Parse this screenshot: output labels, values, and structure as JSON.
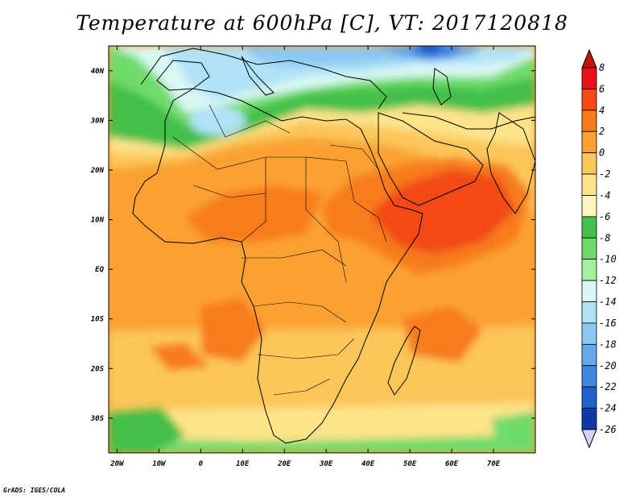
{
  "title": "Temperature at 600hPa [C], VT: 2017120818",
  "credit": "GrADS: IGES/COLA",
  "map": {
    "lon_labels": [
      "20W",
      "10W",
      "0",
      "10E",
      "20E",
      "30E",
      "40E",
      "50E",
      "60E",
      "70E"
    ],
    "lat_labels": [
      "40N",
      "30N",
      "20N",
      "10N",
      "EQ",
      "10S",
      "20S",
      "30S"
    ],
    "lon_values": [
      -20,
      -10,
      0,
      10,
      20,
      30,
      40,
      50,
      60,
      70
    ],
    "lat_values": [
      40,
      30,
      20,
      10,
      0,
      -10,
      -20,
      -30
    ],
    "lon_range": [
      -22,
      80
    ],
    "lat_range": [
      -37,
      45
    ]
  },
  "colorbar": {
    "labels": [
      "8",
      "6",
      "4",
      "2",
      "0",
      "-2",
      "-4",
      "-6",
      "-8",
      "-10",
      "-12",
      "-14",
      "-16",
      "-18",
      "-20",
      "-22",
      "-24",
      "-26"
    ],
    "colors": [
      "#e8101a",
      "#f24a12",
      "#f77b1c",
      "#fba133",
      "#fbc65a",
      "#fde38a",
      "#fef6bd",
      "#42c04a",
      "#6fdb6a",
      "#a4f0a0",
      "#daf8f4",
      "#b0e2f6",
      "#8bc8f2",
      "#63a9ec",
      "#3f87e2",
      "#1f61cf",
      "#0d3aa8",
      "#0a1670"
    ],
    "top_color": "#c2120f",
    "bottom_color": "#d4d4f8"
  }
}
